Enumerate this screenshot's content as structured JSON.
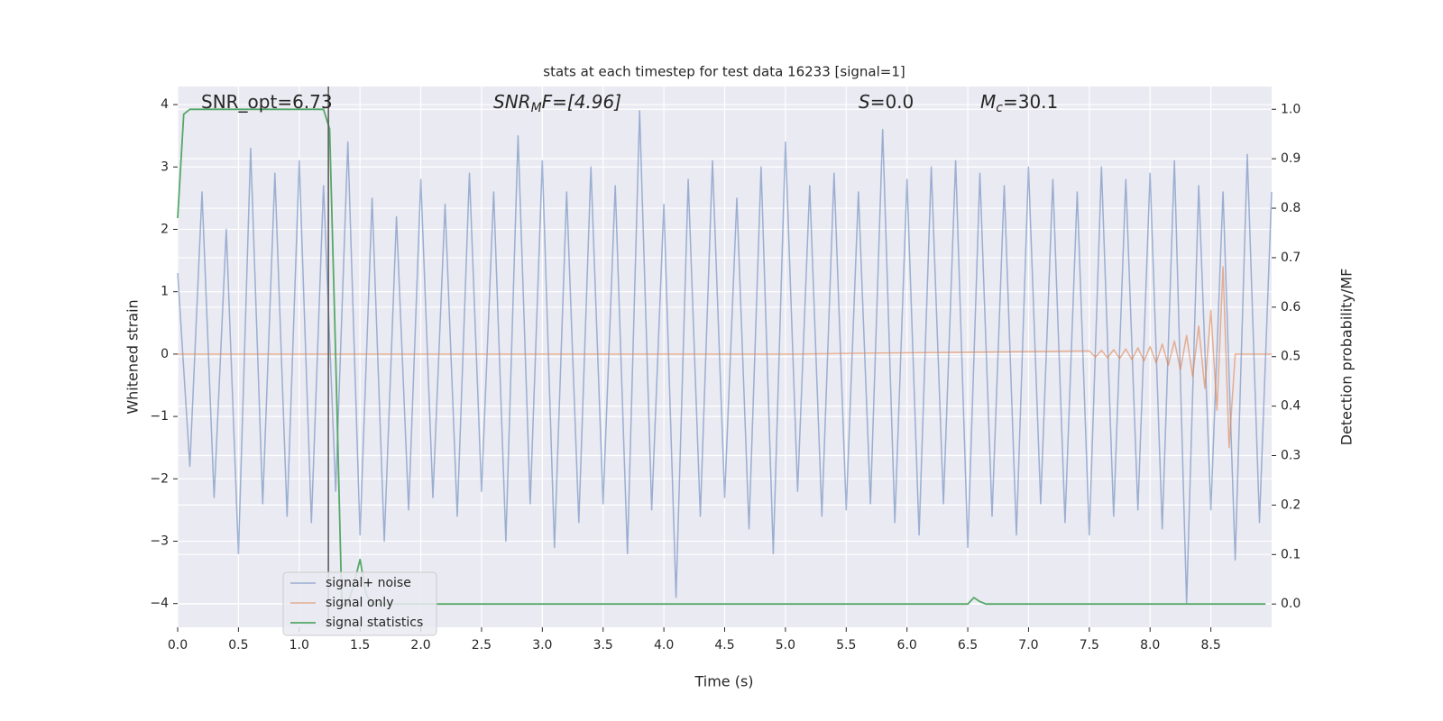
{
  "chart_data": {
    "type": "line",
    "title": "stats at each timestep for test data 16233 [signal=1]",
    "xlabel": "Time (s)",
    "ylabel": "Whitened strain",
    "y2label": "Detection probability/MF",
    "annotations": [
      {
        "main": "SNR_opt=6.73"
      },
      {
        "main": "SNR",
        "sub": "M",
        "rest": "F=[4.96]"
      },
      {
        "main": "S",
        "rest": "=0.0"
      },
      {
        "main": "M",
        "sub": "c",
        "rest": "=30.1"
      }
    ],
    "xlim": [
      0,
      9.0
    ],
    "ylim": [
      -4.38,
      4.29
    ],
    "y2lim": [
      -0.047,
      1.046
    ],
    "xticks": [
      {
        "value": 0,
        "label": "0.0"
      },
      0.5,
      {
        "value": 1,
        "label": "1.0"
      },
      1.5,
      {
        "value": 2,
        "label": "2.0"
      },
      2.5,
      {
        "value": 3,
        "label": "3.0"
      },
      3.5,
      {
        "value": 4,
        "label": "4.0"
      },
      4.5,
      {
        "value": 5,
        "label": "5.0"
      },
      5.5,
      {
        "value": 6,
        "label": "6.0"
      },
      6.5,
      {
        "value": 7,
        "label": "7.0"
      },
      7.5,
      {
        "value": 8,
        "label": "8.0"
      },
      8.5
    ],
    "yticks": [
      {
        "value": -4,
        "label": "−4"
      },
      {
        "value": -3,
        "label": "−3"
      },
      {
        "value": -2,
        "label": "−2"
      },
      {
        "value": -1,
        "label": "−1"
      },
      0,
      1,
      2,
      3,
      4
    ],
    "y2ticks": [
      {
        "value": 0,
        "label": "0.0"
      },
      0.1,
      0.2,
      0.3,
      0.4,
      0.5,
      0.6,
      0.7,
      0.8,
      0.9,
      {
        "value": 1,
        "label": "1.0"
      }
    ],
    "grid": true,
    "vlines": [
      1.24
    ],
    "legend": "lower left",
    "series": [
      {
        "name": "signal+ noise",
        "color": "#4c72b0",
        "x": [
          0,
          0.1,
          0.2,
          0.3,
          0.4,
          0.5,
          0.6,
          0.7,
          0.8,
          0.9,
          1,
          1.1,
          1.2,
          1.3,
          1.4,
          1.5,
          1.6,
          1.7,
          1.8,
          1.9,
          2,
          2.1,
          2.2,
          2.3,
          2.4,
          2.5,
          2.6,
          2.7,
          2.8,
          2.9,
          3,
          3.1,
          3.2,
          3.3,
          3.4,
          3.5,
          3.6,
          3.7,
          3.8,
          3.9,
          4,
          4.1,
          4.2,
          4.3,
          4.4,
          4.5,
          4.6,
          4.7,
          4.8,
          4.9,
          5,
          5.1,
          5.2,
          5.3,
          5.4,
          5.5,
          5.6,
          5.7,
          5.8,
          5.9,
          6,
          6.1,
          6.2,
          6.3,
          6.4,
          6.5,
          6.6,
          6.7,
          6.8,
          6.9,
          7,
          7.1,
          7.2,
          7.3,
          7.4,
          7.5,
          7.6,
          7.7,
          7.8,
          7.9,
          8,
          8.1,
          8.2,
          8.3,
          8.4,
          8.5,
          8.6,
          8.7,
          8.8,
          8.9,
          9.0
        ],
        "values": [
          1.3,
          -1.8,
          2.6,
          -2.3,
          2.0,
          -3.2,
          3.3,
          -2.4,
          2.9,
          -2.6,
          3.1,
          -2.7,
          2.7,
          -2.2,
          3.4,
          -2.9,
          2.5,
          -3.0,
          2.2,
          -2.5,
          2.8,
          -2.3,
          2.4,
          -2.6,
          2.9,
          -2.2,
          2.6,
          -3.0,
          3.5,
          -2.4,
          3.1,
          -3.1,
          2.6,
          -2.7,
          3.0,
          -2.4,
          2.7,
          -3.2,
          3.9,
          -2.5,
          2.4,
          -3.9,
          2.8,
          -2.6,
          3.1,
          -2.3,
          2.5,
          -2.8,
          3.0,
          -3.2,
          3.4,
          -2.2,
          2.7,
          -2.6,
          2.9,
          -2.5,
          2.6,
          -2.4,
          3.6,
          -2.7,
          2.8,
          -2.9,
          3.0,
          -2.4,
          3.1,
          -3.1,
          2.9,
          -2.6,
          2.7,
          -2.9,
          3.0,
          -2.4,
          2.8,
          -2.7,
          2.6,
          -2.9,
          3.0,
          -2.6,
          2.8,
          -2.5,
          2.9,
          -2.8,
          3.1,
          -4.0,
          2.7,
          -2.5,
          2.6,
          -3.3,
          3.2,
          -2.7,
          2.6
        ]
      },
      {
        "name": "signal only",
        "color": "#dd8452",
        "x": [
          0,
          5.0,
          7.5,
          7.55,
          7.6,
          7.65,
          7.7,
          7.75,
          7.8,
          7.85,
          7.9,
          7.95,
          8.0,
          8.05,
          8.1,
          8.15,
          8.2,
          8.25,
          8.3,
          8.35,
          8.4,
          8.45,
          8.5,
          8.55,
          8.6,
          8.65,
          8.7,
          9.0
        ],
        "values": [
          0,
          0,
          0.05,
          -0.05,
          0.06,
          -0.06,
          0.07,
          -0.07,
          0.08,
          -0.09,
          0.1,
          -0.11,
          0.12,
          -0.14,
          0.16,
          -0.18,
          0.21,
          -0.25,
          0.3,
          -0.36,
          0.45,
          -0.55,
          0.7,
          -0.9,
          1.4,
          -1.5,
          0,
          0
        ]
      },
      {
        "name": "signal statistics",
        "color": "#55a868",
        "axis": "y2",
        "x": [
          0,
          0.05,
          0.1,
          0.5,
          1.0,
          1.2,
          1.25,
          1.3,
          1.35,
          1.4,
          1.45,
          1.5,
          1.55,
          1.6,
          2.0,
          6.5,
          6.55,
          6.6,
          6.65,
          7.0,
          8.0,
          8.95
        ],
        "values": [
          0.78,
          0.99,
          1.0,
          1.0,
          1.0,
          1.0,
          0.96,
          0.5,
          0.0,
          0.0,
          0.04,
          0.09,
          0.02,
          0.0,
          0.0,
          0.0,
          0.013,
          0.005,
          0.0,
          0.0,
          0.0,
          0.0
        ]
      }
    ]
  }
}
